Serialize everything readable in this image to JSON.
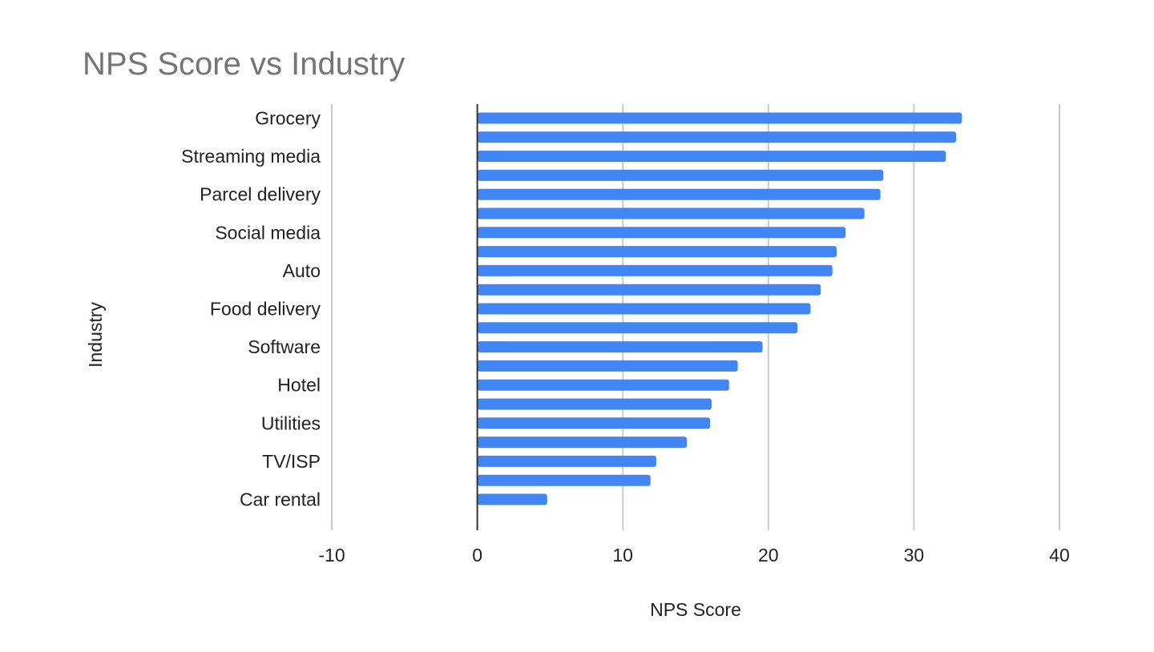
{
  "chart_data": {
    "type": "bar",
    "orientation": "horizontal",
    "title": "NPS Score vs Industry",
    "xlabel": "NPS Score",
    "ylabel": "Industry",
    "xlim": [
      -10,
      40
    ],
    "x_ticks": [
      -10,
      0,
      10,
      20,
      30,
      40
    ],
    "grid": true,
    "legend": "none",
    "bar_color": "#4285f4",
    "categories": [
      "Grocery",
      "",
      "Streaming media",
      "",
      "Parcel delivery",
      "",
      "Social media",
      "",
      "Auto",
      "",
      "Food delivery",
      "",
      "Software",
      "",
      "Hotel",
      "",
      "Utilities",
      "",
      "TV/ISP",
      "",
      "Car rental"
    ],
    "values": [
      33.3,
      32.9,
      32.2,
      27.9,
      27.7,
      26.6,
      25.3,
      24.7,
      24.4,
      23.6,
      22.9,
      22.0,
      19.6,
      17.9,
      17.3,
      16.1,
      16.0,
      14.4,
      12.3,
      11.9,
      4.8
    ]
  }
}
